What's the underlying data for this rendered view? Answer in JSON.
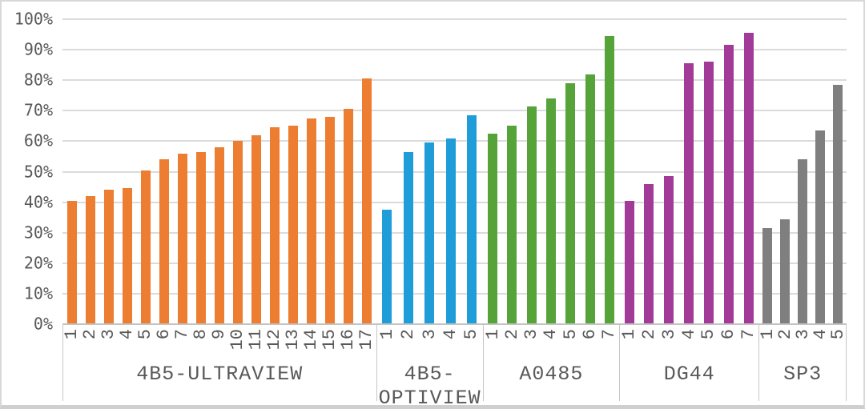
{
  "chart_data": {
    "type": "bar",
    "title": "",
    "xlabel": "",
    "ylabel": "",
    "ylim": [
      0,
      100
    ],
    "grid": true,
    "legend": "none",
    "y_tick_labels": [
      "100%",
      "90%",
      "80%",
      "70%",
      "60%",
      "50%",
      "40%",
      "30%",
      "20%",
      "10%",
      "0%"
    ],
    "layout": {
      "group_width_pct": [
        40.0,
        13.6,
        17.4,
        17.8,
        11.2
      ]
    },
    "groups": [
      {
        "label": "4B5-ULTRAVIEW",
        "color": "#ED7D31",
        "categories": [
          "1",
          "2",
          "3",
          "4",
          "5",
          "6",
          "7",
          "8",
          "9",
          "10",
          "11",
          "12",
          "13",
          "14",
          "15",
          "16",
          "17"
        ],
        "values": [
          40.5,
          42,
          44,
          44.5,
          50.5,
          54,
          56,
          56.5,
          58,
          60,
          62,
          64.5,
          65,
          67.5,
          68,
          70.5,
          80.5
        ]
      },
      {
        "label": "4B5-OPTIVIEW",
        "color": "#1F9DD9",
        "categories": [
          "1",
          "2",
          "3",
          "4",
          "5"
        ],
        "values": [
          37.5,
          56.5,
          59.5,
          61,
          68.5
        ]
      },
      {
        "label": "A0485",
        "color": "#55A339",
        "categories": [
          "1",
          "2",
          "3",
          "4",
          "5",
          "6",
          "7"
        ],
        "values": [
          62.5,
          65,
          71.5,
          74,
          79,
          82,
          94.5
        ]
      },
      {
        "label": "DG44",
        "color": "#A23A97",
        "categories": [
          "1",
          "2",
          "3",
          "4",
          "5",
          "6",
          "7"
        ],
        "values": [
          40.5,
          46,
          48.5,
          85.5,
          86,
          91.5,
          95.5
        ]
      },
      {
        "label": "SP3",
        "color": "#7F7F7F",
        "categories": [
          "1",
          "2",
          "3",
          "4",
          "5"
        ],
        "values": [
          31.5,
          34.5,
          54,
          63.5,
          78.5
        ]
      }
    ],
    "colors": {
      "gridline": "#dbdbdb",
      "axis_line": "#c3c3c3",
      "separator": "#c6c6c6",
      "text": "#595959"
    }
  }
}
